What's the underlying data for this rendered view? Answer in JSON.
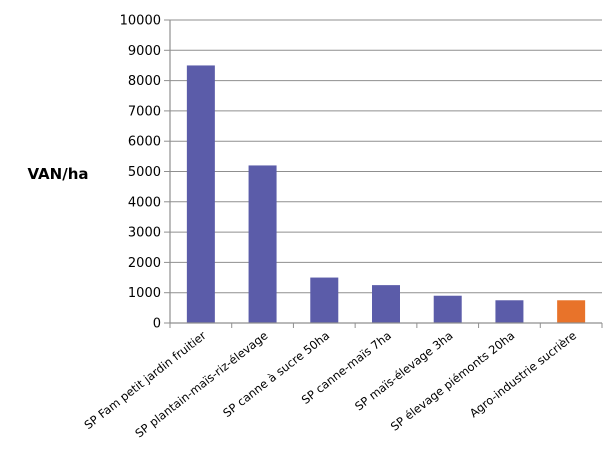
{
  "chart_data": {
    "type": "bar",
    "title": "",
    "xlabel": "",
    "ylabel": "VAN/ha",
    "ylim": [
      0,
      10000
    ],
    "yticks": [
      0,
      1000,
      2000,
      3000,
      4000,
      5000,
      6000,
      7000,
      8000,
      9000,
      10000
    ],
    "grid": true,
    "legend": "none",
    "categories": [
      "SP Fam petit jardin fruitier",
      "SP plantain-maïs-riz-élevage",
      "SP canne à sucre 50ha",
      "SP canne-maïs 7ha",
      "SP maïs-élevage 3ha",
      "SP élevage piémonts 20ha",
      "Agro-industrie sucrière"
    ],
    "values": [
      8500,
      5200,
      1500,
      1250,
      900,
      750,
      750
    ],
    "colors": [
      "#5b5ca9",
      "#5b5ca9",
      "#5b5ca9",
      "#5b5ca9",
      "#5b5ca9",
      "#5b5ca9",
      "#e8732a"
    ],
    "grid_color": "#8f8f8f",
    "axis_color": "#8f8f8f"
  }
}
